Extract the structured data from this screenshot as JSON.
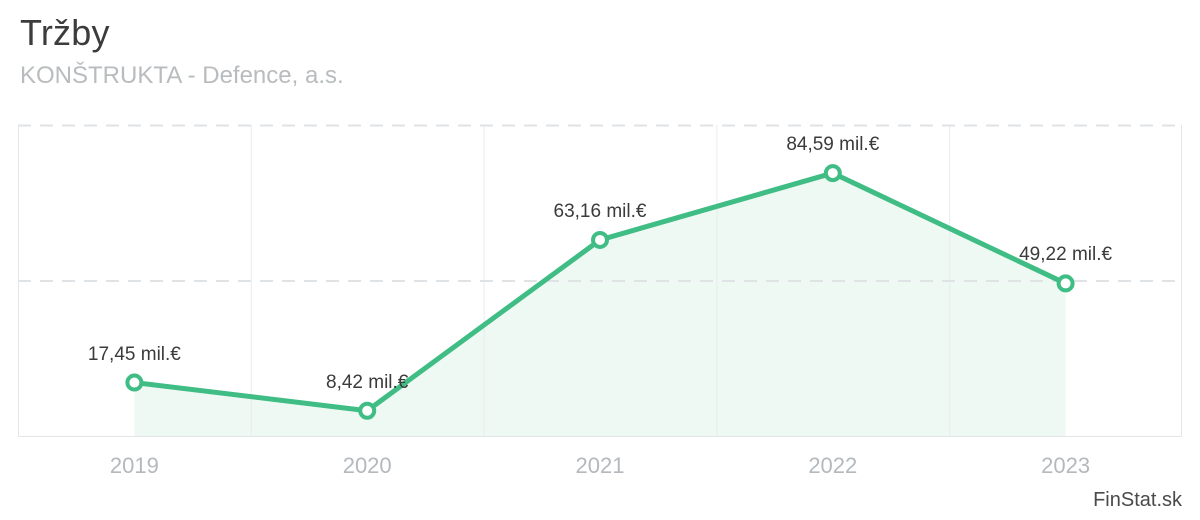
{
  "header": {
    "title": "Tržby",
    "subtitle": "KONŠTRUKTA - Defence, a.s."
  },
  "watermark": "FinStat.sk",
  "chart_data": {
    "type": "line",
    "title": "Tržby",
    "subtitle": "KONŠTRUKTA - Defence, a.s.",
    "categories": [
      "2019",
      "2020",
      "2021",
      "2022",
      "2023"
    ],
    "values": [
      17.45,
      8.42,
      63.16,
      84.59,
      49.22
    ],
    "point_labels": [
      "17,45 mil.€",
      "8,42 mil.€",
      "63,16 mil.€",
      "84,59 mil.€",
      "49,22 mil.€"
    ],
    "unit": "mil.€",
    "ylim": [
      0,
      100
    ],
    "gridlines_y": [
      50,
      100
    ],
    "xlabel": "",
    "ylabel": "",
    "legend": "none",
    "grid": "horizontal-dashed, vertical band separators, no y tick labels",
    "colors": {
      "line": "#3fbd85",
      "area_fill": "rgba(63,189,133,0.09)",
      "marker_fill": "#ffffff",
      "grid_dashed": "#dfe3e5",
      "grid_vertical": "#e8eced",
      "border": "#e2e6e8"
    }
  }
}
